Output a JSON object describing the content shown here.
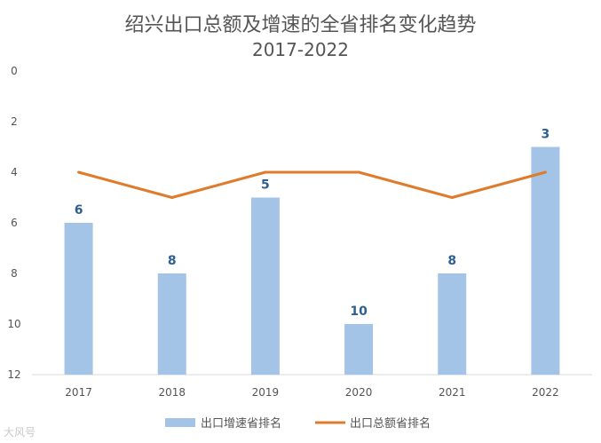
{
  "chart_data": {
    "type": "bar+line",
    "title": "绍兴出口总额及增速的全省排名变化趋势",
    "subtitle": "2017-2022",
    "categories": [
      "2017",
      "2018",
      "2019",
      "2020",
      "2021",
      "2022"
    ],
    "y_axis": {
      "range": [
        0,
        12
      ],
      "inverted": true,
      "ticks": [
        "0",
        "2",
        "4",
        "6",
        "8",
        "10",
        "12"
      ]
    },
    "grid": false,
    "legend_position": "bottom",
    "series": [
      {
        "name": "出口增速省排名",
        "type": "bar",
        "values": [
          6,
          8,
          5,
          10,
          8,
          3
        ],
        "labels": [
          "6",
          "8",
          "5",
          "10",
          "8",
          "3"
        ],
        "color": "#a3c4e6",
        "label_color": "#2e5f91"
      },
      {
        "name": "出口总额省排名",
        "type": "line",
        "values": [
          4,
          5,
          4,
          4,
          5,
          4
        ],
        "color": "#e07b2b"
      }
    ]
  },
  "watermark": "大风号"
}
